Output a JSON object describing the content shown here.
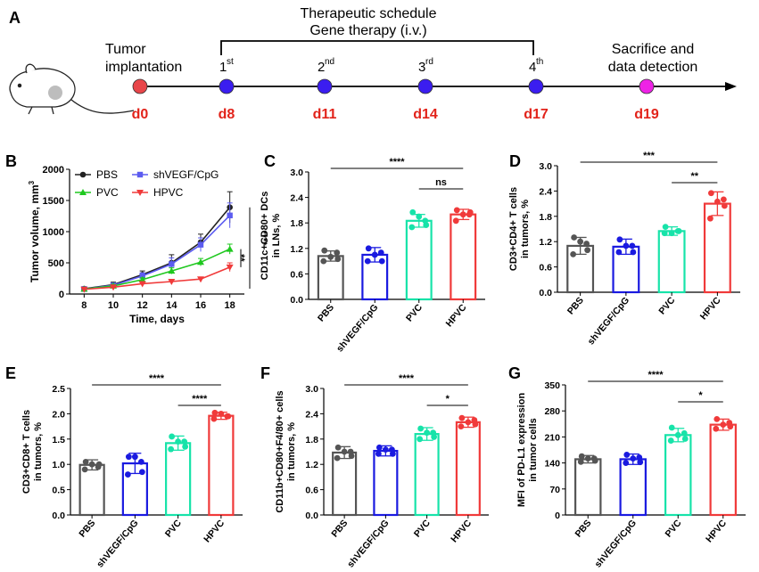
{
  "panel_a": {
    "label": "A",
    "schedule_title": "Therapeutic schedule",
    "schedule_subtitle": "Gene therapy (i.v.)",
    "start_label_1": "Tumor",
    "start_label_2": "implantation",
    "end_label_1": "Sacrifice and",
    "end_label_2": "data detection",
    "timepoints": [
      {
        "day": "d0",
        "dose": "",
        "color": "#e8464a"
      },
      {
        "day": "d8",
        "dose": "1",
        "sup": "st",
        "color": "#3b1df0"
      },
      {
        "day": "d11",
        "dose": "2",
        "sup": "nd",
        "color": "#3b1df0"
      },
      {
        "day": "d14",
        "dose": "3",
        "sup": "rd",
        "color": "#3b1df0"
      },
      {
        "day": "d17",
        "dose": "4",
        "sup": "th",
        "color": "#3b1df0"
      },
      {
        "day": "d19",
        "dose": "",
        "color": "#ee22e6"
      }
    ],
    "day_color": "#e2231a"
  },
  "colors": {
    "PBS": "#555555",
    "shVEGF/CpG": "#1a1ae0",
    "PVC": "#17e3a9",
    "HPVC": "#f03a3a"
  },
  "chart_data": [
    {
      "panel": "B",
      "type": "line",
      "title": "",
      "xlabel": "Time, days",
      "ylabel": "Tumor volume, mm",
      "ylabel_sup": "3",
      "x": [
        8,
        10,
        12,
        14,
        16,
        18
      ],
      "xlim": [
        7,
        19
      ],
      "ylim": [
        0,
        2000
      ],
      "yticks": [
        "0",
        "500",
        "1000",
        "1500",
        "2000"
      ],
      "series": [
        {
          "name": "PBS",
          "values": [
            85,
            150,
            310,
            500,
            830,
            1390
          ],
          "err": [
            30,
            40,
            60,
            130,
            130,
            250
          ],
          "marker": "circle",
          "color": "#222222"
        },
        {
          "name": "shVEGF/CpG",
          "values": [
            80,
            140,
            290,
            480,
            790,
            1260
          ],
          "err": [
            25,
            35,
            50,
            100,
            110,
            200
          ],
          "marker": "square",
          "color": "#5c5cf0"
        },
        {
          "name": "PVC",
          "values": [
            80,
            130,
            230,
            370,
            510,
            720
          ],
          "err": [
            20,
            25,
            30,
            50,
            60,
            80
          ],
          "marker": "triangle-up",
          "color": "#1fc81f"
        },
        {
          "name": "HPVC",
          "values": [
            75,
            110,
            165,
            200,
            240,
            430
          ],
          "err": [
            15,
            20,
            20,
            25,
            30,
            70
          ],
          "marker": "triangle-down",
          "color": "#f03a3a"
        }
      ],
      "sig": [
        {
          "text": "****"
        },
        {
          "text": "**"
        }
      ]
    },
    {
      "panel": "C",
      "type": "bar",
      "ylabel_lines": [
        "CD11c+CD80+ DCs",
        "in LNs, %"
      ],
      "categories": [
        "PBS",
        "shVEGF/CpG",
        "PVC",
        "HPVC"
      ],
      "values": [
        1.02,
        1.05,
        1.85,
        2.0
      ],
      "err": [
        0.12,
        0.17,
        0.15,
        0.12
      ],
      "points": [
        [
          1.15,
          1.1,
          0.9,
          0.95,
          1.0
        ],
        [
          1.2,
          1.1,
          0.9,
          0.9,
          1.05
        ],
        [
          2.05,
          1.85,
          1.7,
          1.75,
          1.95
        ],
        [
          2.1,
          2.0,
          1.85,
          2.05,
          2.0
        ]
      ],
      "ylim": [
        0,
        3.0
      ],
      "yticks": [
        "0.0",
        "0.6",
        "1.2",
        "1.8",
        "2.4",
        "3.0"
      ],
      "sig": [
        {
          "from": 0,
          "to": 3,
          "text": "****"
        },
        {
          "from": 2,
          "to": 3,
          "text": "ns"
        }
      ]
    },
    {
      "panel": "D",
      "type": "bar",
      "ylabel_lines": [
        "CD3+CD4+ T cells",
        "in tumors, %"
      ],
      "categories": [
        "PBS",
        "shVEGF/CpG",
        "PVC",
        "HPVC"
      ],
      "values": [
        1.1,
        1.08,
        1.45,
        2.1
      ],
      "err": [
        0.2,
        0.18,
        0.1,
        0.28
      ],
      "points": [
        [
          1.3,
          1.15,
          0.9,
          1.0,
          1.2
        ],
        [
          1.25,
          1.1,
          0.95,
          0.95,
          1.1
        ],
        [
          1.55,
          1.45,
          1.4,
          1.45,
          1.4
        ],
        [
          2.35,
          2.2,
          1.75,
          2.05,
          2.15
        ]
      ],
      "ylim": [
        0,
        3.0
      ],
      "yticks": [
        "0.0",
        "0.6",
        "1.2",
        "1.8",
        "2.4",
        "3.0"
      ],
      "sig": [
        {
          "from": 0,
          "to": 3,
          "text": "***"
        },
        {
          "from": 2,
          "to": 3,
          "text": "**"
        }
      ]
    },
    {
      "panel": "E",
      "type": "bar",
      "ylabel_lines": [
        "CD3+CD8+ T cells",
        "in tumors, %"
      ],
      "categories": [
        "PBS",
        "shVEGF/CpG",
        "PVC",
        "HPVC"
      ],
      "values": [
        0.99,
        1.02,
        1.42,
        1.96
      ],
      "err": [
        0.1,
        0.2,
        0.14,
        0.07
      ],
      "points": [
        [
          1.05,
          0.95,
          0.9,
          1.0,
          1.0
        ],
        [
          1.15,
          1.05,
          0.8,
          0.85,
          1.15
        ],
        [
          1.55,
          1.45,
          1.3,
          1.35,
          1.45
        ],
        [
          2.02,
          1.95,
          1.9,
          1.95,
          2.0
        ]
      ],
      "ylim": [
        0,
        2.5
      ],
      "yticks": [
        "0.0",
        "0.5",
        "1.0",
        "1.5",
        "2.0",
        "2.5"
      ],
      "sig": [
        {
          "from": 0,
          "to": 3,
          "text": "****"
        },
        {
          "from": 2,
          "to": 3,
          "text": "****"
        }
      ]
    },
    {
      "panel": "F",
      "type": "bar",
      "ylabel_lines": [
        "CD11b+CD80+F4/80+ cells",
        "in tumors, %"
      ],
      "categories": [
        "PBS",
        "shVEGF/CpG",
        "PVC",
        "HPVC"
      ],
      "values": [
        1.48,
        1.52,
        1.92,
        2.2
      ],
      "err": [
        0.14,
        0.12,
        0.15,
        0.12
      ],
      "points": [
        [
          1.6,
          1.5,
          1.35,
          1.4,
          1.5
        ],
        [
          1.6,
          1.55,
          1.45,
          1.45,
          1.55
        ],
        [
          2.05,
          1.95,
          1.8,
          1.85,
          1.95
        ],
        [
          2.3,
          2.25,
          2.1,
          2.15,
          2.2
        ]
      ],
      "ylim": [
        0,
        3.0
      ],
      "yticks": [
        "0.0",
        "0.6",
        "1.2",
        "1.8",
        "2.4",
        "3.0"
      ],
      "sig": [
        {
          "from": 0,
          "to": 3,
          "text": "****"
        },
        {
          "from": 2,
          "to": 3,
          "text": "*"
        }
      ]
    },
    {
      "panel": "G",
      "type": "bar",
      "ylabel_lines": [
        "MFI of PD-L1 expression",
        "in tumor cells"
      ],
      "categories": [
        "PBS",
        "shVEGF/CpG",
        "PVC",
        "HPVC"
      ],
      "values": [
        150,
        150,
        215,
        243
      ],
      "err": [
        10,
        14,
        18,
        15
      ],
      "points": [
        [
          158,
          152,
          143,
          146,
          152
        ],
        [
          162,
          155,
          140,
          142,
          152
        ],
        [
          235,
          220,
          200,
          205,
          215
        ],
        [
          258,
          248,
          232,
          238,
          243
        ]
      ],
      "ylim": [
        0,
        350
      ],
      "yticks": [
        "0",
        "70",
        "140",
        "210",
        "280",
        "350"
      ],
      "sig": [
        {
          "from": 0,
          "to": 3,
          "text": "****"
        },
        {
          "from": 2,
          "to": 3,
          "text": "*"
        }
      ]
    }
  ]
}
